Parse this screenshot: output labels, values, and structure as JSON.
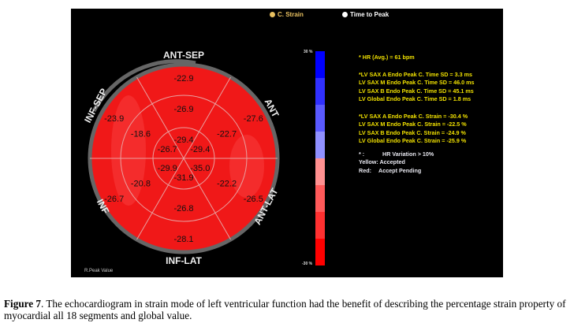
{
  "legend": {
    "c_strain": "C. Strain",
    "time_to_peak": "Time to Peak",
    "c_strain_color": "#e8c060"
  },
  "bullseye": {
    "labels": {
      "ant_sep": "ANT-SEP",
      "ant": "ANT",
      "ant_lat": "ANT-LAT",
      "inf_lat": "INF-LAT",
      "inf": "INF",
      "inf_sep": "INF-SEP"
    },
    "basal": [
      "-22.9",
      "-27.6",
      "-26.5",
      "-28.1",
      "-26.7",
      "-23.9"
    ],
    "mid": [
      "-26.9",
      "-22.7",
      "-22.2",
      "-26.8",
      "-20.8",
      "-18.6"
    ],
    "apical": [
      "-29.4",
      "-29.4",
      "-35.0",
      "-31.9",
      "-29.9",
      "-26.7"
    ],
    "footer": "R.Peak Value",
    "fill_color": "#f01818"
  },
  "colorbar": {
    "max_label": "30 %",
    "min_label": "-30 %",
    "colors": [
      "#0000ff",
      "#3030ff",
      "#5a5aff",
      "#9090ff",
      "#ff9090",
      "#ff5a5a",
      "#ff3030",
      "#ff0000"
    ]
  },
  "info": {
    "hr": "* HR (Avg.) = 61 bpm",
    "time_sd": [
      "*LV SAX A Endo Peak C. Time SD = 3.3 ms",
      "LV SAX M Endo Peak C. Time SD = 46.0 ms",
      "LV SAX B Endo Peak C. Time SD = 45.1 ms",
      "LV Global Endo Peak C. Time SD = 1.8 ms"
    ],
    "strain": [
      "*LV SAX A Endo Peak C. Strain = -30.4 %",
      "LV SAX M Endo Peak C. Strain = -22.5 %",
      "LV SAX B Endo Peak C. Strain = -24.9 %",
      "LV Global Endo Peak C. Strain = -25.9 %"
    ],
    "note_star": "* :",
    "note_hr": "HR Variation > 10%",
    "yellow": "Yellow: Accepted",
    "red_label": "Red:",
    "red_value": "Accept Pending"
  },
  "caption": {
    "figure": "Figure 7",
    "text": ". The echocardiogram in strain mode of left ventricular function had the benefit of describing the percentage strain property of myocardial all 18 segments and global value."
  }
}
